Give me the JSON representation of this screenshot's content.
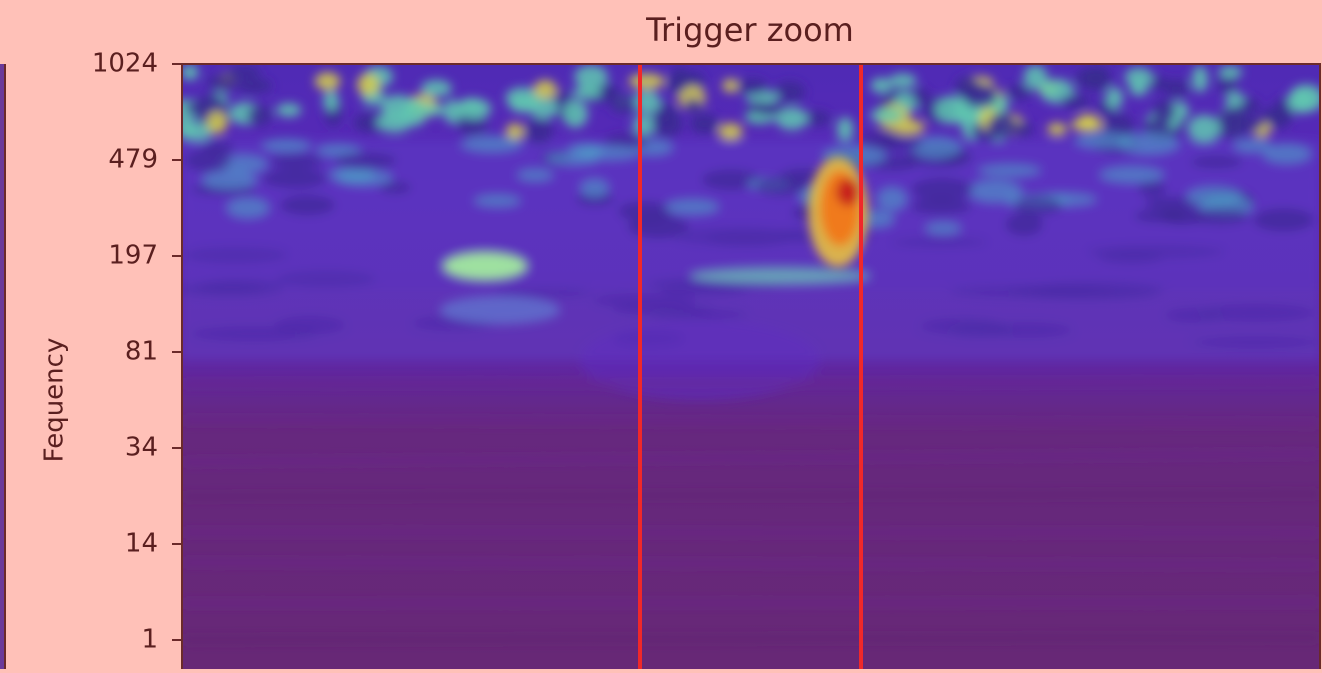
{
  "chart_data": {
    "type": "heatmap",
    "title": "Trigger zoom",
    "y_label": "Fequency",
    "yticks": [
      1024,
      479,
      197,
      81,
      34,
      14,
      1
    ]
  }
}
